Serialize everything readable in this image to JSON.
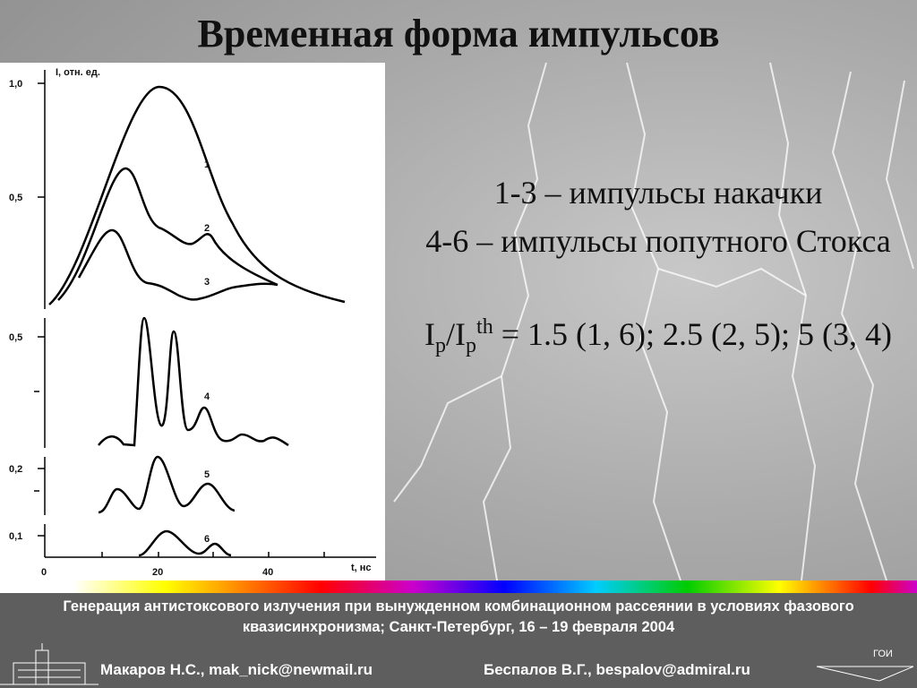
{
  "header": {
    "title": "Временная форма импульсов"
  },
  "figure": {
    "y_label": "I, отн. ед.",
    "x_label": "t, нс",
    "x_ticks": [
      "0",
      "20",
      "40"
    ],
    "panel1_ticks": [
      "1,0",
      "0,5"
    ],
    "panel2_ticks": [
      "0,5"
    ],
    "panel3_ticks": [
      "0,2"
    ],
    "panel4_ticks": [
      "0,1"
    ],
    "curve_labels": [
      "1",
      "2",
      "3",
      "4",
      "5",
      "6"
    ]
  },
  "body": {
    "lines": [
      "1-3 – импульсы накачки",
      "4-6 – импульсы попутного Стокса"
    ],
    "formula": {
      "i1": "I",
      "sub1": "p",
      "slash": "/I",
      "sub2": "p",
      "sup": "th",
      "rest": " = 1.5 (1, 6); 2.5 (2, 5); 5 (3, 4)"
    }
  },
  "footer": {
    "conference": "Генерация антистоксового излучения при вынужденном комбинационном рассеянии в условиях фазового квазисинхронизма; Санкт-Петербург, 16 – 19 февраля  2004",
    "author1": "Макаров Н.С., mak_nick@newmail.ru",
    "author2": "Беспалов В.Г., bespalov@admiral.ru",
    "logo": "ГОИ"
  }
}
